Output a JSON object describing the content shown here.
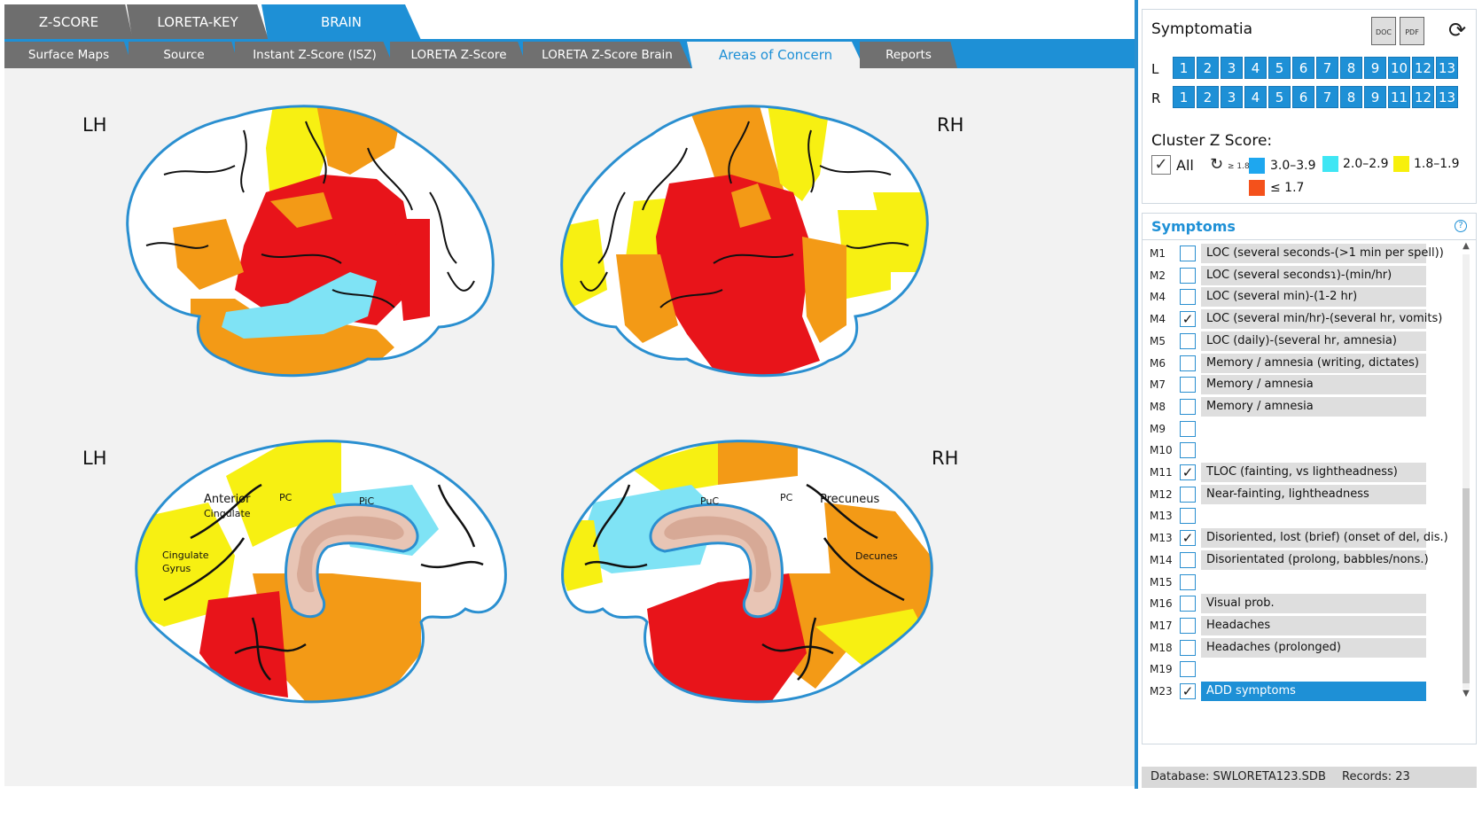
{
  "top_tabs": [
    {
      "label": "Z-SCORE",
      "active": false
    },
    {
      "label": "LORETA-KEY",
      "active": false
    },
    {
      "label": "BRAIN",
      "active": true
    }
  ],
  "sub_tabs": [
    {
      "label": "Surface Maps",
      "active": false
    },
    {
      "label": "Source",
      "active": false
    },
    {
      "label": "Instant Z-Score (ISZ)",
      "active": false
    },
    {
      "label": "LORETA Z-Score",
      "active": false
    },
    {
      "label": "LORETA Z-Score Brain",
      "active": false
    },
    {
      "label": "Areas of Concern",
      "active": true
    },
    {
      "label": "Reports",
      "active": false
    }
  ],
  "brain": {
    "top_left_label": "LH",
    "top_right_label": "RH",
    "bottom_left_label": "LH",
    "bottom_right_label": "RH",
    "medial_left_labels": {
      "anterior": "Anterior",
      "cingulate": "Cingulate",
      "cingulate_gyrus_1": "Cingulate",
      "cingulate_gyrus_2": "Gyrus",
      "pc": "PC",
      "pic": "PiC"
    },
    "medial_right_labels": {
      "puc": "PuC",
      "pc": "PC",
      "precuneus": "Precuneus",
      "decunes": "Decunes"
    },
    "colors": {
      "z_3_0_3_9": "#2ea8ef",
      "z_2_0_2_9": "#3fe2f3",
      "z_1_8_1_9": "#f7ef0c",
      "z_le_1_7": "#f4531b",
      "red": "#e8141a",
      "orange": "#f39a16",
      "yellow": "#f7f012",
      "cyan": "#7fe3f5"
    }
  },
  "symptomatia": {
    "title": "Symptomatia",
    "doc_icon": "DOC",
    "pdf_icon": "PDF",
    "refresh_icon": "refresh-icon",
    "left_label": "L",
    "right_label": "R",
    "left_numbers": [
      "1",
      "2",
      "3",
      "4",
      "5",
      "6",
      "7",
      "8",
      "9",
      "10",
      "12",
      "13"
    ],
    "right_numbers": [
      "1",
      "2",
      "3",
      "4",
      "5",
      "6",
      "7",
      "8",
      "9",
      "11",
      "12",
      "13"
    ],
    "cluster_title": "Cluster Z Score:",
    "all_label": "All",
    "reset_sub": "≥ 1.8",
    "legend": [
      {
        "label": "3.0–3.9",
        "color": "#1ea7ef"
      },
      {
        "label": "2.0–2.9",
        "color": "#3fe6f4"
      },
      {
        "label": "1.8–1.9",
        "color": "#f7f00c"
      },
      {
        "label": "≤ 1.7",
        "color": "#f4511b"
      }
    ]
  },
  "symptoms": {
    "title": "Symptoms",
    "help": "?",
    "rows": [
      {
        "code": "M1",
        "checked": false,
        "text": "LOC (several seconds-(>1 min per spell))",
        "style": "filled"
      },
      {
        "code": "M2",
        "checked": false,
        "text": "LOC (several secondsɿ)-(min/hr)",
        "style": "filled"
      },
      {
        "code": "M4",
        "checked": false,
        "text": "LOC (several min)-(1-2 hr)",
        "style": "filled"
      },
      {
        "code": "M4",
        "checked": true,
        "text": "LOC (several min/hr)-(several hr, vomits)",
        "style": "filled"
      },
      {
        "code": "M5",
        "checked": false,
        "text": "LOC (daily)-(several hr, amnesia)",
        "style": "filled"
      },
      {
        "code": "M6",
        "checked": false,
        "text": "Memory / amnesia (writing, dictates)",
        "style": "filled"
      },
      {
        "code": "M7",
        "checked": false,
        "text": "Memory / amnesia",
        "style": "filled"
      },
      {
        "code": "M8",
        "checked": false,
        "text": "Memory / amnesia",
        "style": "filled"
      },
      {
        "code": "M9",
        "checked": false,
        "text": "",
        "style": "empty"
      },
      {
        "code": "M10",
        "checked": false,
        "text": "",
        "style": "empty"
      },
      {
        "code": "M11",
        "checked": true,
        "text": "TLOC (fainting, vs lightheadness)",
        "style": "filled"
      },
      {
        "code": "M12",
        "checked": false,
        "text": "Near-fainting, lightheadness",
        "style": "filled"
      },
      {
        "code": "M13",
        "checked": false,
        "text": "",
        "style": "empty"
      },
      {
        "code": "M13",
        "checked": true,
        "text": "Disoriented, lost (brief) (onset of del, dis.)",
        "style": "filled"
      },
      {
        "code": "M14",
        "checked": false,
        "text": "Disorientated (prolong, babbles/nons.)",
        "style": "filled"
      },
      {
        "code": "M15",
        "checked": false,
        "text": "",
        "style": "empty"
      },
      {
        "code": "M16",
        "checked": false,
        "text": "Visual prob.",
        "style": "filled"
      },
      {
        "code": "M17",
        "checked": false,
        "text": "Headaches",
        "style": "filled"
      },
      {
        "code": "M18",
        "checked": false,
        "text": "Headaches (prolonged)",
        "style": "filled"
      },
      {
        "code": "M19",
        "checked": false,
        "text": "",
        "style": "empty"
      },
      {
        "code": "M23",
        "checked": true,
        "text": "ADD symptoms",
        "style": "selected"
      }
    ]
  },
  "status": {
    "database": "Database: SWLORETA123.SDB",
    "records": "Records: 23"
  }
}
